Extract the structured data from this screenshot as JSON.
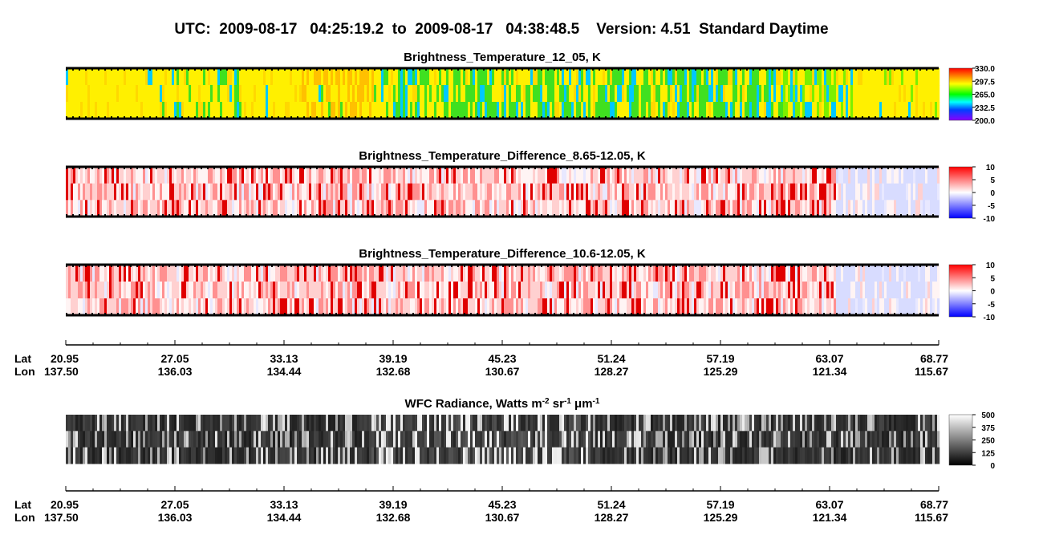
{
  "title": "UTC:  2009-08-17   04:25:19.2  to  2009-08-17   04:38:48.5    Version: 4.51  Standard Daytime",
  "panels": [
    {
      "title": "Brightness_Temperature_12_05, K",
      "colormap": "rainbow",
      "colorbar_ticks": [
        {
          "value": 330,
          "label": "330.0"
        },
        {
          "value": 297.5,
          "label": "297.5"
        },
        {
          "value": 265,
          "label": "265.0"
        },
        {
          "value": 232.5,
          "label": "232.5"
        },
        {
          "value": 200,
          "label": "200.0"
        }
      ]
    },
    {
      "title": "Brightness_Temperature_Difference_8.65-12.05, K",
      "colormap": "diverging",
      "colorbar_ticks": [
        10,
        5,
        0,
        -5,
        -10
      ]
    },
    {
      "title": "Brightness_Temperature_Difference_10.6-12.05, K",
      "colormap": "diverging",
      "colorbar_ticks": [
        10,
        5,
        0,
        -5,
        -10
      ]
    },
    {
      "title_parts": [
        "WFC Radiance, Watts m",
        "-2",
        " sr",
        "-1",
        " μm",
        "-1"
      ],
      "colormap": "gray",
      "colorbar_ticks": [
        500,
        375,
        250,
        125,
        0
      ]
    }
  ],
  "axis": {
    "lat_label": "Lat",
    "lon_label": "Lon",
    "lat": [
      "20.95",
      "27.05",
      "33.13",
      "39.19",
      "45.23",
      "51.24",
      "57.19",
      "63.07",
      "68.77"
    ],
    "lon": [
      "137.50",
      "136.03",
      "134.44",
      "132.68",
      "130.67",
      "128.27",
      "125.29",
      "121.34",
      "115.67"
    ]
  }
}
